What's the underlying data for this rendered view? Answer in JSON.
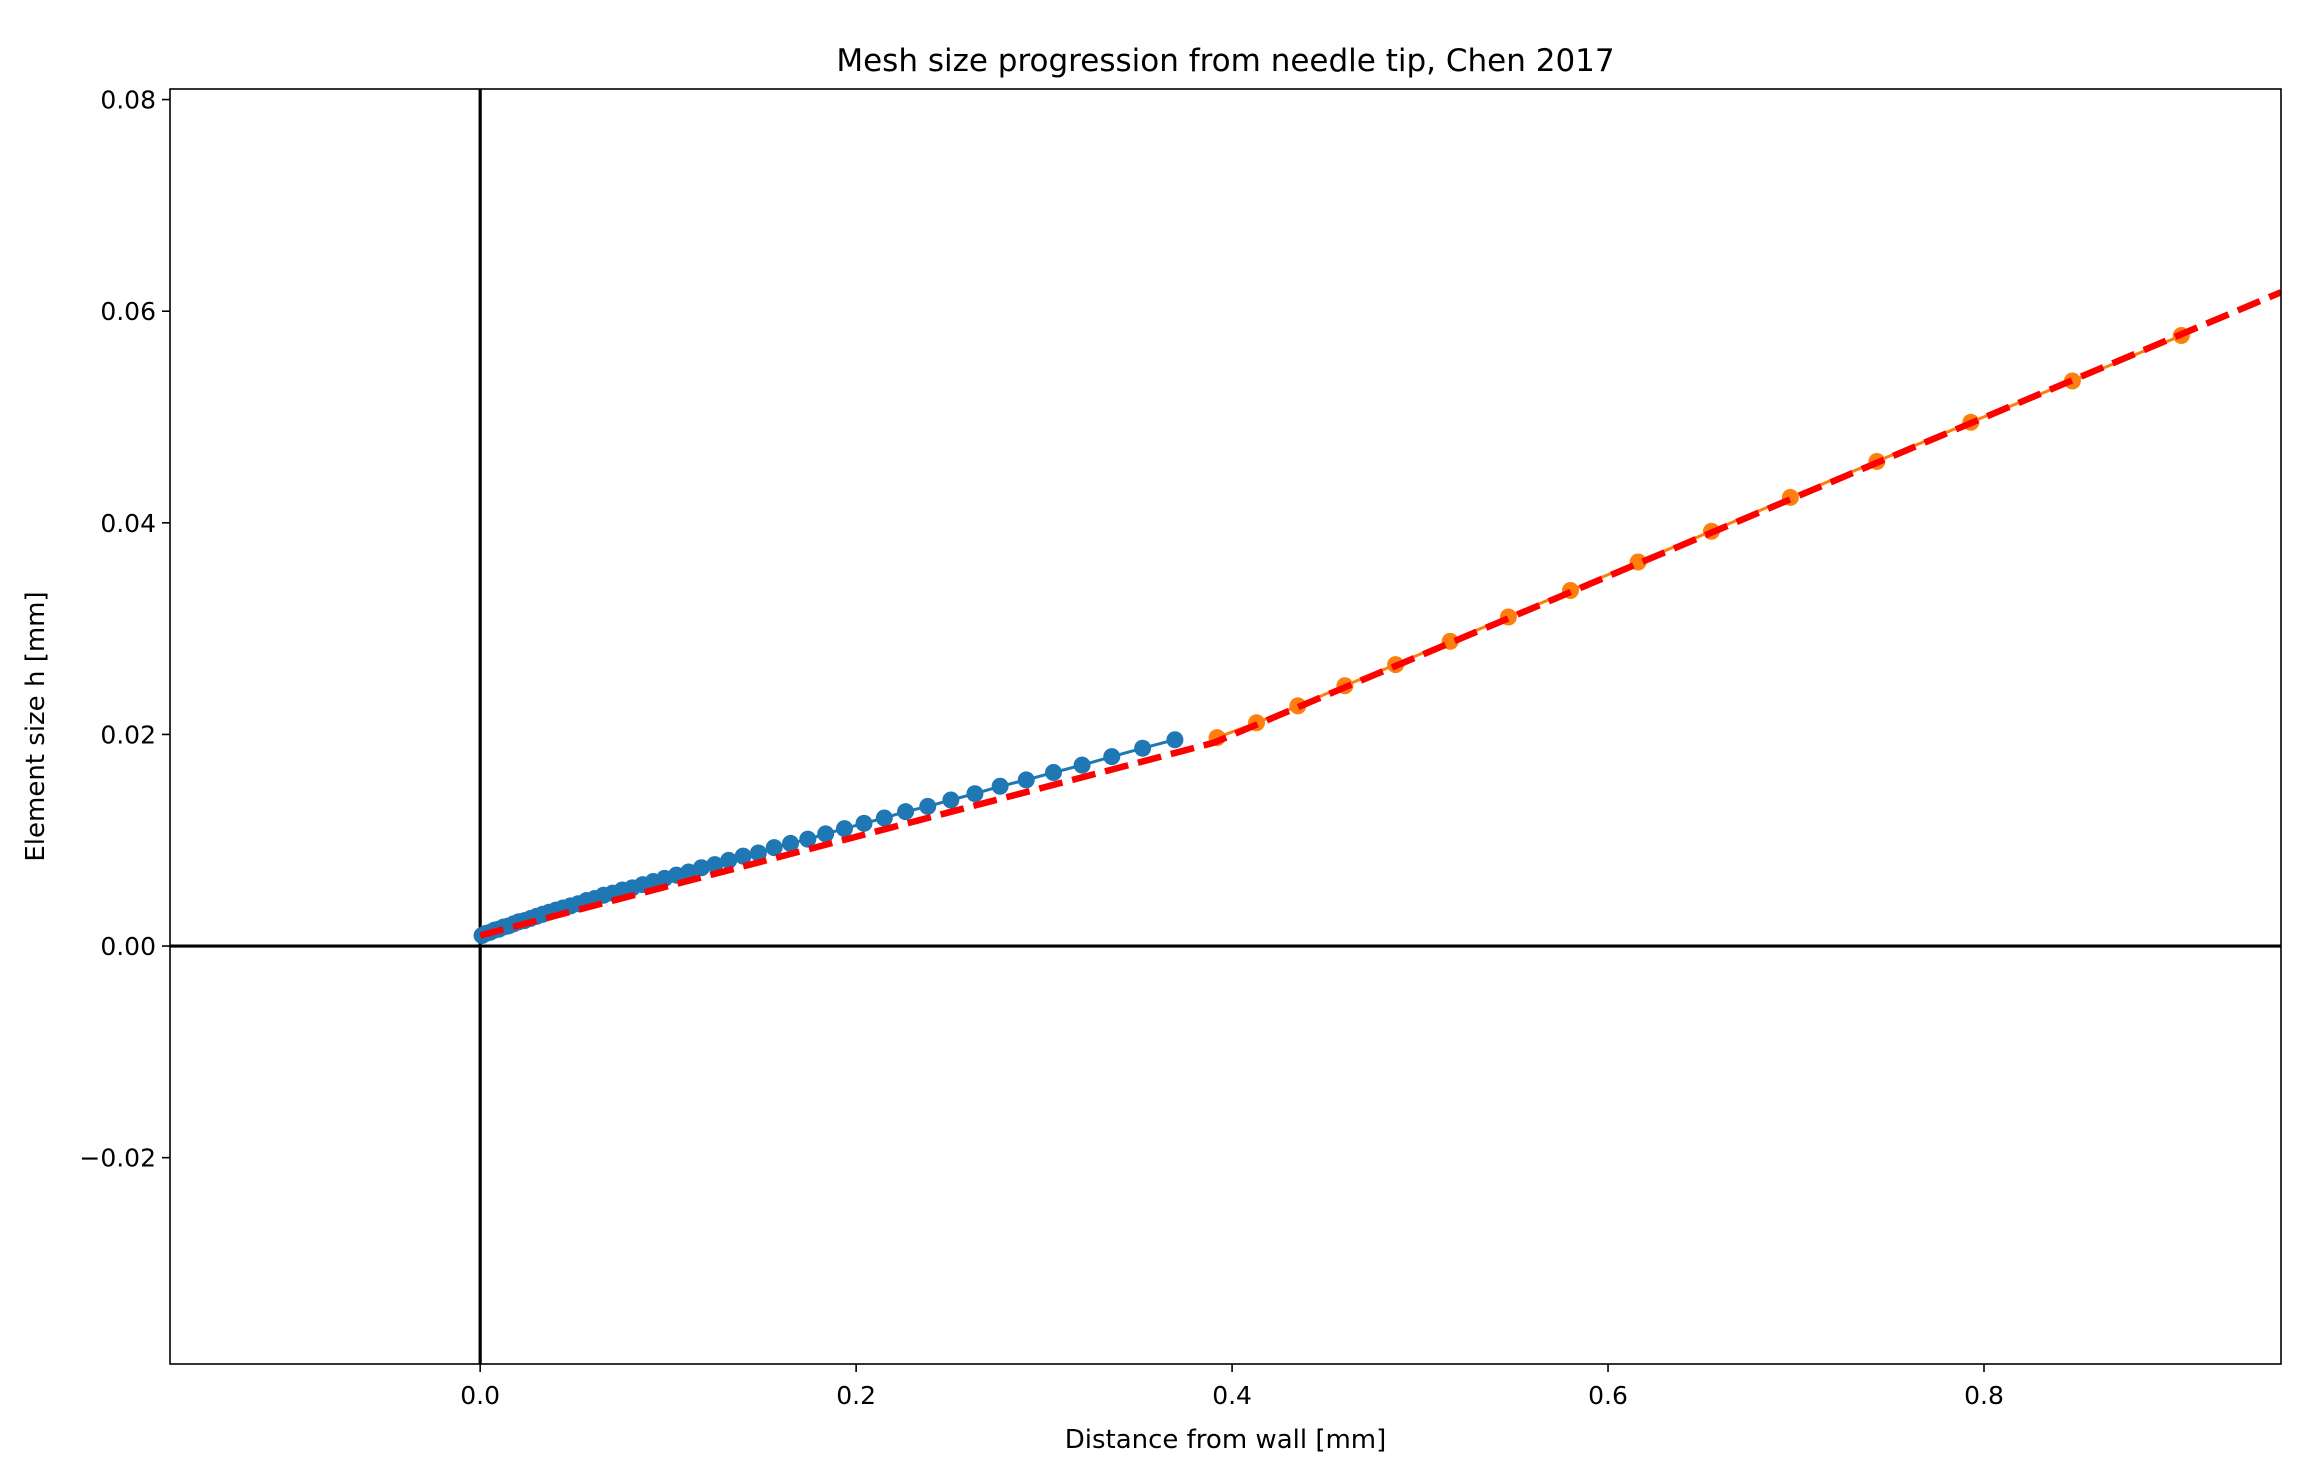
{
  "chart_data": {
    "type": "scatter",
    "title": "Mesh size progression from needle tip, Chen 2017",
    "xlabel": "Distance from wall [mm]",
    "ylabel": "Element size h [mm]",
    "xlim": [
      -0.165,
      0.958
    ],
    "ylim": [
      -0.0395,
      0.081
    ],
    "xticks": [
      0.0,
      0.2,
      0.4,
      0.6,
      0.8
    ],
    "xtick_labels": [
      "0.0",
      "0.2",
      "0.4",
      "0.6",
      "0.8"
    ],
    "yticks": [
      -0.02,
      0.0,
      0.02,
      0.04,
      0.06,
      0.08
    ],
    "ytick_labels": [
      "−0.02",
      "0.00",
      "0.02",
      "0.04",
      "0.06",
      "0.08"
    ],
    "grid": false,
    "reference_lines": {
      "x": 0,
      "y": 0
    },
    "series": [
      {
        "color": "#1f77b4",
        "marker": "circle",
        "connected": true,
        "x": [
          0.001,
          0.0031,
          0.0053,
          0.0076,
          0.01,
          0.0125,
          0.0151,
          0.0178,
          0.0206,
          0.0236,
          0.0267,
          0.0299,
          0.0332,
          0.0367,
          0.0403,
          0.0441,
          0.0481,
          0.0522,
          0.0565,
          0.061,
          0.0656,
          0.0705,
          0.0756,
          0.0809,
          0.0864,
          0.0921,
          0.0981,
          0.1044,
          0.1109,
          0.1177,
          0.1248,
          0.1322,
          0.1399,
          0.148,
          0.1564,
          0.1651,
          0.1743,
          0.1838,
          0.1938,
          0.2042,
          0.215,
          0.2263,
          0.2381,
          0.2504,
          0.2632,
          0.2766,
          0.2905,
          0.305,
          0.3202,
          0.336,
          0.3524,
          0.3696
        ],
        "y": [
          0.001,
          0.0012,
          0.0013,
          0.0015,
          0.0016,
          0.0018,
          0.0019,
          0.0021,
          0.0023,
          0.0024,
          0.0026,
          0.0028,
          0.003,
          0.0032,
          0.0034,
          0.0036,
          0.0038,
          0.004,
          0.0043,
          0.0045,
          0.0048,
          0.005,
          0.0053,
          0.0055,
          0.0058,
          0.0061,
          0.0064,
          0.0067,
          0.007,
          0.0074,
          0.0077,
          0.0081,
          0.0085,
          0.0088,
          0.0093,
          0.0097,
          0.0101,
          0.0106,
          0.0111,
          0.0116,
          0.0121,
          0.0127,
          0.0132,
          0.0138,
          0.0144,
          0.0151,
          0.0157,
          0.0164,
          0.0171,
          0.0179,
          0.0187,
          0.0195
        ]
      },
      {
        "color": "#ff7f0e",
        "marker": "circle",
        "connected": true,
        "x": [
          0.392,
          0.413,
          0.435,
          0.46,
          0.487,
          0.516,
          0.547,
          0.58,
          0.616,
          0.655,
          0.697,
          0.743,
          0.793,
          0.847,
          0.905
        ],
        "y": [
          0.0197,
          0.0211,
          0.0227,
          0.0246,
          0.0266,
          0.0288,
          0.0311,
          0.0336,
          0.0363,
          0.0392,
          0.0424,
          0.0458,
          0.0495,
          0.0534,
          0.0577
        ]
      }
    ],
    "fit_line": {
      "color": "#ff0000",
      "style": "dashed",
      "x": [
        0.0,
        0.39,
        0.958
      ],
      "y": [
        0.001,
        0.0192,
        0.0618
      ]
    }
  }
}
